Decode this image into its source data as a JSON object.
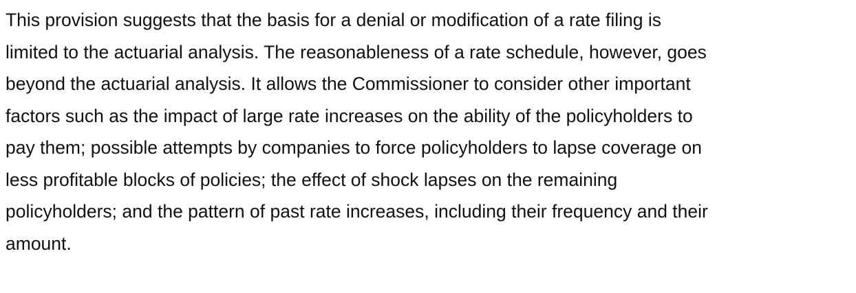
{
  "paragraph": {
    "lines": [
      "This provision suggests that the basis for a denial or modification of a rate filing is",
      "limited to the actuarial analysis. The reasonableness of a rate schedule, however, goes",
      "beyond the actuarial analysis. It allows the Commissioner to consider other important",
      "factors such as the impact of large rate increases on the ability of the policyholders to",
      "pay them; possible attempts by companies to force policyholders to lapse coverage on",
      "less profitable blocks of policies; the effect of shock lapses on the remaining",
      "policyholders; and the pattern of past rate increases, including their frequency and their",
      "amount."
    ]
  }
}
